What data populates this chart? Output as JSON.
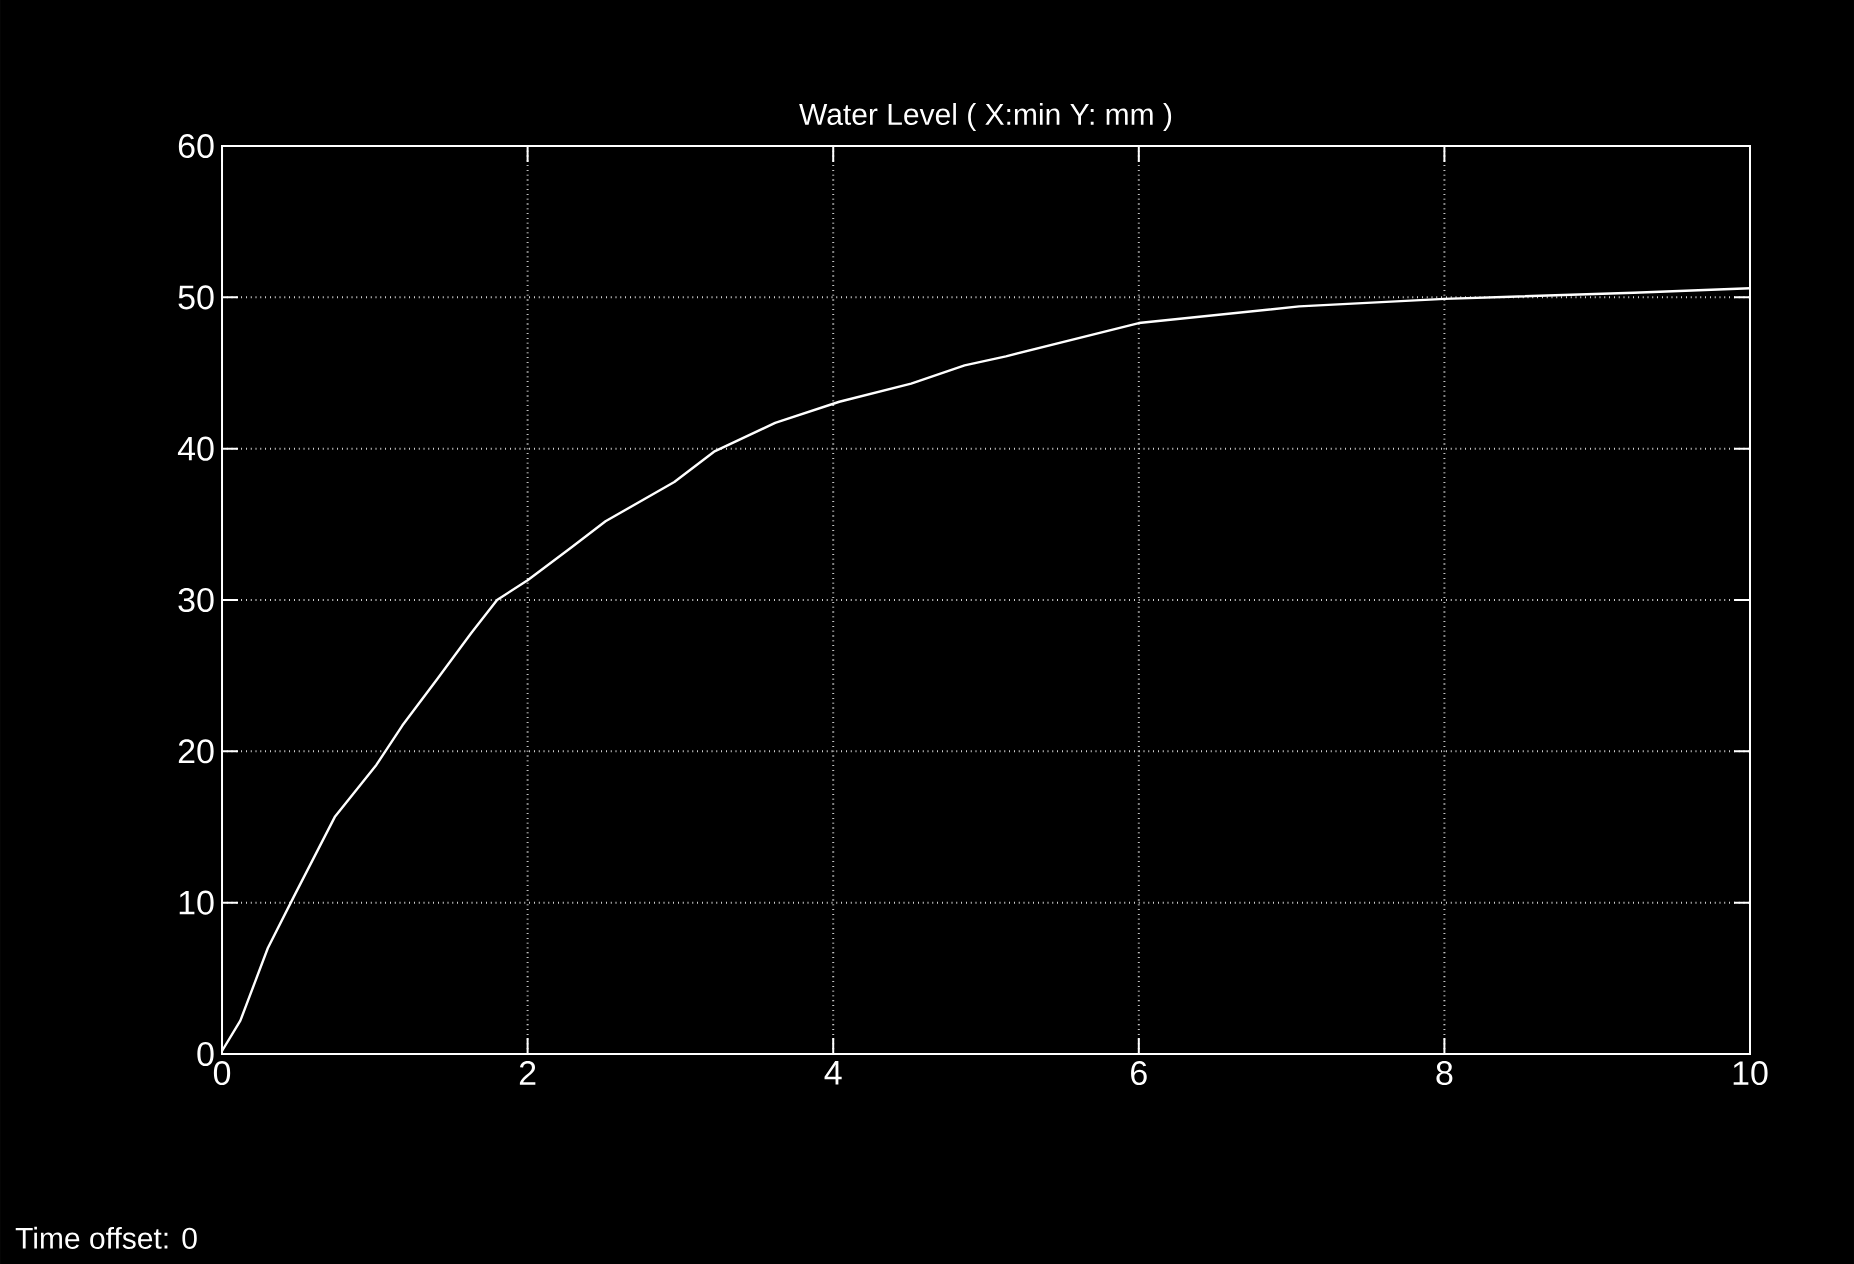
{
  "chart_data": {
    "type": "line",
    "title": "Water Level ( X:min Y: mm )",
    "annotations": [
      "Time offset:  0"
    ],
    "series": [
      {
        "color": "#ffffff",
        "x": [
          0,
          0.12,
          0.3,
          0.47,
          0.74,
          1.01,
          1.18,
          1.41,
          1.63,
          1.8,
          2.0,
          2.29,
          2.51,
          2.96,
          3.22,
          3.62,
          4.04,
          4.51,
          4.86,
          5.13,
          6.0,
          7.05,
          8.0,
          9.24,
          10.0
        ],
        "values": [
          0.2,
          2.2,
          7.0,
          10.4,
          15.7,
          19.1,
          21.7,
          24.8,
          27.8,
          30.0,
          31.3,
          33.5,
          35.2,
          37.8,
          39.8,
          41.7,
          43.1,
          44.3,
          45.5,
          46.1,
          48.3,
          49.4,
          49.9,
          50.3,
          50.6
        ]
      }
    ],
    "xlim": [
      0,
      10
    ],
    "ylim": [
      0,
      60
    ],
    "xticks": [
      0,
      2,
      4,
      6,
      8,
      10
    ],
    "yticks": [
      0,
      10,
      20,
      30,
      40,
      50,
      60
    ],
    "grid": true,
    "line_style": "solid"
  }
}
